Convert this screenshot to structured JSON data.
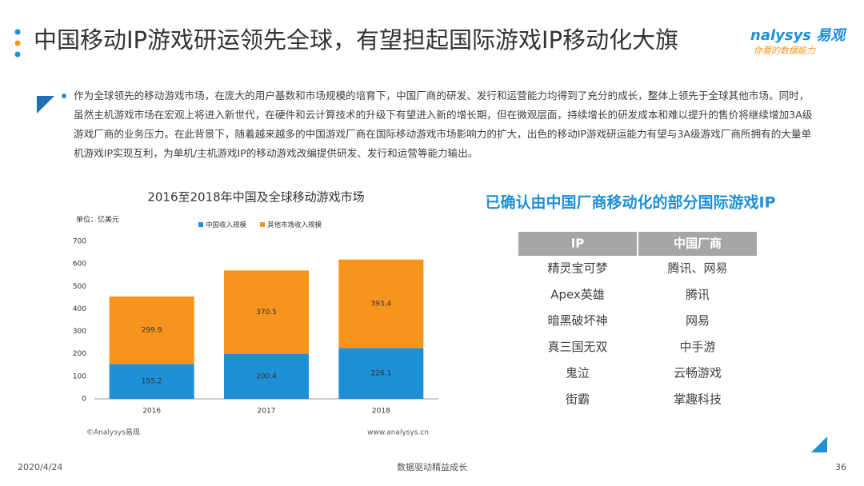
{
  "header": {
    "title": "中国移动IP游戏研运领先全球，有望担起国际游戏IP移动化大旗",
    "logo": "nalysys 易观",
    "slogan": "你要的数据能力"
  },
  "paragraph": "作为全球领先的移动游戏市场，在庞大的用户基数和市场规模的培育下，中国厂商的研发、发行和运营能力均得到了充分的成长，整体上领先于全球其他市场。同时，虽然主机游戏市场在宏观上将进入新世代，在硬件和云计算技术的升级下有望进入新的增长期，但在微观层面，持续增长的研发成本和难以提升的售价将继续增加3A级游戏厂商的业务压力。在此背景下，随着越来越多的中国游戏厂商在国际移动游戏市场影响力的扩大，出色的移动IP游戏研运能力有望与3A级游戏厂商所拥有的大量单机游戏IP实现互利，为单机/主机游戏IP的移动游戏改编提供研发、发行和运营等能力输出。",
  "chart_data": {
    "type": "stacked-bar",
    "title": "2016至2018年中国及全球移动游戏市场",
    "unit": "单位：亿美元",
    "categories": [
      "2016",
      "2017",
      "2018"
    ],
    "series": [
      {
        "name": "中国收入规模",
        "color": "#1f8fd6",
        "values": [
          155.2,
          200.4,
          226.1
        ]
      },
      {
        "name": "其他市场收入规模",
        "color": "#f7941d",
        "values": [
          299.9,
          370.5,
          393.4
        ]
      }
    ],
    "ylim": [
      0,
      700
    ],
    "yticks": [
      0,
      100,
      200,
      300,
      400,
      500,
      600,
      700
    ],
    "grid": false,
    "source": "©Analysys易观",
    "website": "www.analysys.cn"
  },
  "table": {
    "title": "已确认由中国厂商移动化的部分国际游戏IP",
    "header": [
      "IP",
      "中国厂商"
    ],
    "rows": [
      [
        "精灵宝可梦",
        "腾讯、网易"
      ],
      [
        "Apex英雄",
        "腾讯"
      ],
      [
        "暗黑破坏神",
        "网易"
      ],
      [
        "真三国无双",
        "中手游"
      ],
      [
        "鬼泣",
        "云畅游戏"
      ],
      [
        "街霸",
        "掌趣科技"
      ]
    ]
  },
  "footer": {
    "date": "2020/4/24",
    "slogan": "数据驱动精益成长",
    "page": "36"
  }
}
